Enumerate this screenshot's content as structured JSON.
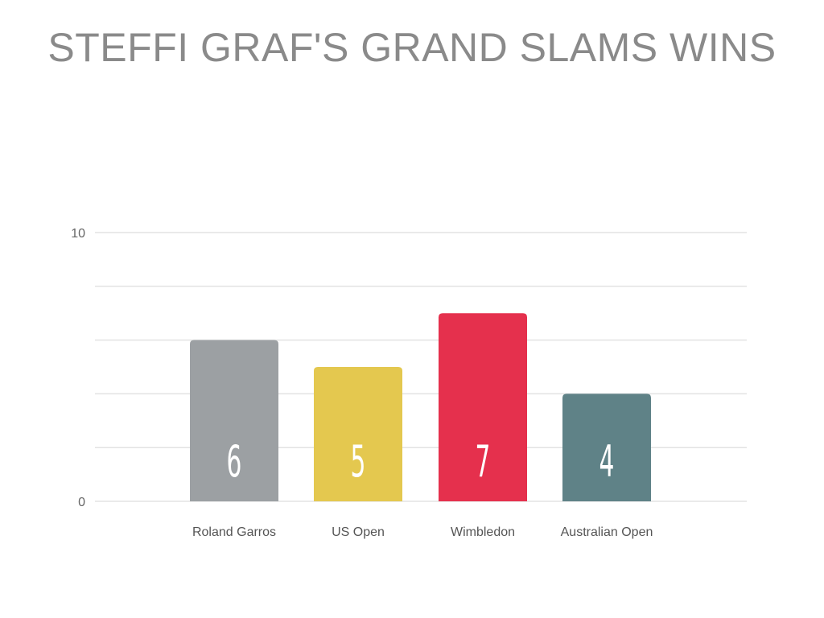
{
  "chart_data": {
    "type": "bar",
    "title": "STEFFI GRAF'S GRAND SLAMS WINS",
    "categories": [
      "Roland Garros",
      "US Open",
      "Wimbledon",
      "Australian Open"
    ],
    "values": [
      6,
      5,
      7,
      4
    ],
    "colors": [
      "#9ca0a3",
      "#e4c84f",
      "#e5304d",
      "#5f8287"
    ],
    "ylim": [
      0,
      10
    ],
    "y_tick_labels": [
      "0",
      "10"
    ],
    "gridlines": [
      0,
      2,
      4,
      6,
      8,
      10
    ],
    "grid": true,
    "grid_color": "#e3e3e3",
    "data_labels": [
      "6",
      "5",
      "7",
      "4"
    ],
    "legend": "none"
  }
}
